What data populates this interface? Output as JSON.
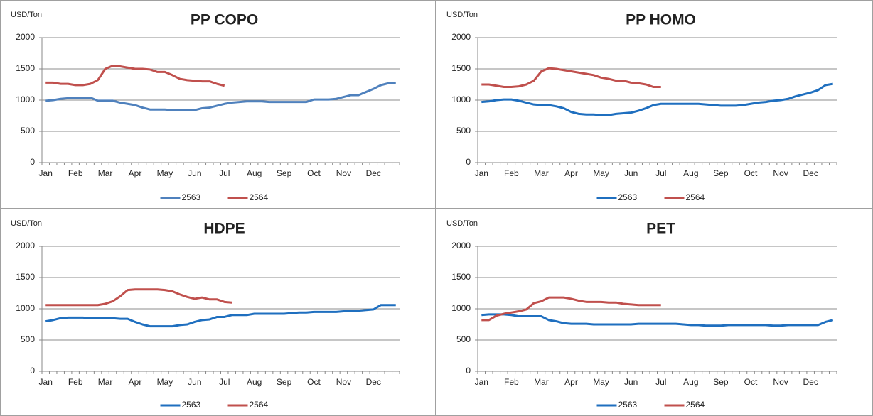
{
  "chart_data": [
    {
      "type": "line",
      "title": "PP COPO",
      "ylabel": "USD/Ton",
      "categories": [
        "Jan",
        null,
        null,
        null,
        "Feb",
        null,
        null,
        null,
        "Mar",
        null,
        null,
        null,
        "Apr",
        null,
        null,
        null,
        "May",
        null,
        null,
        null,
        "Jun",
        null,
        null,
        null,
        "Jul",
        null,
        null,
        null,
        "Aug",
        null,
        null,
        null,
        "Sep",
        null,
        null,
        null,
        "Oct",
        null,
        null,
        null,
        "Nov",
        null,
        null,
        null,
        "Dec",
        null,
        null,
        null
      ],
      "series": [
        {
          "name": "2563",
          "color": "#4f81bd",
          "values": [
            990,
            1000,
            1020,
            1030,
            1040,
            1030,
            1040,
            990,
            990,
            990,
            960,
            940,
            920,
            880,
            850,
            850,
            850,
            840,
            840,
            840,
            840,
            870,
            880,
            910,
            940,
            960,
            970,
            980,
            980,
            980,
            970,
            970,
            970,
            970,
            970,
            970,
            1010,
            1010,
            1010,
            1020,
            1050,
            1080,
            1080,
            1130,
            1180,
            1240,
            1270,
            1270
          ]
        },
        {
          "name": "2564",
          "color": "#c0504d",
          "values": [
            1280,
            1280,
            1260,
            1260,
            1240,
            1240,
            1260,
            1320,
            1500,
            1550,
            1540,
            1520,
            1500,
            1500,
            1490,
            1450,
            1450,
            1400,
            1340,
            1320,
            1310,
            1300,
            1300,
            1260,
            1230,
            null,
            null,
            null,
            null,
            null,
            null,
            null,
            null,
            null,
            null,
            null,
            null,
            null,
            null,
            null,
            null,
            null,
            null,
            null,
            null,
            null,
            null,
            null
          ]
        }
      ],
      "ylim": [
        0,
        2000
      ],
      "yticks": [
        0,
        500,
        1000,
        1500,
        2000
      ],
      "grid": true,
      "legend": "bottom"
    },
    {
      "type": "line",
      "title": "PP HOMO",
      "ylabel": "USD/Ton",
      "categories": [
        "Jan",
        null,
        null,
        null,
        "Feb",
        null,
        null,
        null,
        "Mar",
        null,
        null,
        null,
        "Apr",
        null,
        null,
        null,
        "May",
        null,
        null,
        null,
        "Jun",
        null,
        null,
        null,
        "Jul",
        null,
        null,
        null,
        "Aug",
        null,
        null,
        null,
        "Sep",
        null,
        null,
        null,
        "Oct",
        null,
        null,
        null,
        "Nov",
        null,
        null,
        null,
        "Dec",
        null,
        null,
        null
      ],
      "series": [
        {
          "name": "2563",
          "color": "#1f6fbf",
          "values": [
            970,
            980,
            1000,
            1010,
            1010,
            990,
            960,
            930,
            920,
            920,
            900,
            870,
            810,
            780,
            770,
            770,
            760,
            760,
            780,
            790,
            800,
            830,
            870,
            920,
            940,
            940,
            940,
            940,
            940,
            940,
            930,
            920,
            910,
            910,
            910,
            920,
            940,
            960,
            970,
            990,
            1000,
            1020,
            1060,
            1090,
            1120,
            1160,
            1240,
            1260
          ]
        },
        {
          "name": "2564",
          "color": "#c0504d",
          "values": [
            1250,
            1250,
            1230,
            1210,
            1210,
            1220,
            1250,
            1310,
            1460,
            1510,
            1500,
            1480,
            1460,
            1440,
            1420,
            1400,
            1360,
            1340,
            1310,
            1310,
            1280,
            1270,
            1250,
            1210,
            1210,
            null,
            null,
            null,
            null,
            null,
            null,
            null,
            null,
            null,
            null,
            null,
            null,
            null,
            null,
            null,
            null,
            null,
            null,
            null,
            null,
            null,
            null,
            null
          ]
        }
      ],
      "ylim": [
        0,
        2000
      ],
      "yticks": [
        0,
        500,
        1000,
        1500,
        2000
      ],
      "grid": true,
      "legend": "bottom"
    },
    {
      "type": "line",
      "title": "HDPE",
      "ylabel": "USD/Ton",
      "categories": [
        "Jan",
        null,
        null,
        null,
        "Feb",
        null,
        null,
        null,
        "Mar",
        null,
        null,
        null,
        "Apr",
        null,
        null,
        null,
        "May",
        null,
        null,
        null,
        "Jun",
        null,
        null,
        null,
        "Jul",
        null,
        null,
        null,
        "Aug",
        null,
        null,
        null,
        "Sep",
        null,
        null,
        null,
        "Oct",
        null,
        null,
        null,
        "Nov",
        null,
        null,
        null,
        "Dec",
        null,
        null,
        null
      ],
      "series": [
        {
          "name": "2563",
          "color": "#1f6fbf",
          "values": [
            800,
            820,
            850,
            860,
            860,
            860,
            850,
            850,
            850,
            850,
            840,
            840,
            790,
            750,
            720,
            720,
            720,
            720,
            740,
            750,
            790,
            820,
            830,
            870,
            870,
            900,
            900,
            900,
            920,
            920,
            920,
            920,
            920,
            930,
            940,
            940,
            950,
            950,
            950,
            950,
            960,
            960,
            970,
            980,
            990,
            1060,
            1060,
            1060
          ]
        },
        {
          "name": "2564",
          "color": "#c0504d",
          "values": [
            1060,
            1060,
            1060,
            1060,
            1060,
            1060,
            1060,
            1060,
            1080,
            1120,
            1200,
            1300,
            1310,
            1310,
            1310,
            1310,
            1300,
            1280,
            1230,
            1190,
            1160,
            1180,
            1150,
            1150,
            1110,
            1100,
            null,
            null,
            null,
            null,
            null,
            null,
            null,
            null,
            null,
            null,
            null,
            null,
            null,
            null,
            null,
            null,
            null,
            null,
            null,
            null,
            null,
            null
          ]
        }
      ],
      "ylim": [
        0,
        2000
      ],
      "yticks": [
        0,
        500,
        1000,
        1500,
        2000
      ],
      "grid": true,
      "legend": "bottom"
    },
    {
      "type": "line",
      "title": "PET",
      "ylabel": "USD/Ton",
      "categories": [
        "Jan",
        null,
        null,
        null,
        "Feb",
        null,
        null,
        null,
        "Mar",
        null,
        null,
        null,
        "Apr",
        null,
        null,
        null,
        "May",
        null,
        null,
        null,
        "Jun",
        null,
        null,
        null,
        "Jul",
        null,
        null,
        null,
        "Aug",
        null,
        null,
        null,
        "Sep",
        null,
        null,
        null,
        "Oct",
        null,
        null,
        null,
        "Nov",
        null,
        null,
        null,
        "Dec",
        null,
        null,
        null
      ],
      "series": [
        {
          "name": "2563",
          "color": "#1f6fbf",
          "values": [
            900,
            910,
            910,
            910,
            900,
            880,
            880,
            880,
            880,
            820,
            800,
            770,
            760,
            760,
            760,
            750,
            750,
            750,
            750,
            750,
            750,
            760,
            760,
            760,
            760,
            760,
            760,
            750,
            740,
            740,
            730,
            730,
            730,
            740,
            740,
            740,
            740,
            740,
            740,
            730,
            730,
            740,
            740,
            740,
            740,
            740,
            790,
            820
          ]
        },
        {
          "name": "2564",
          "color": "#c0504d",
          "values": [
            820,
            820,
            890,
            920,
            940,
            960,
            990,
            1090,
            1120,
            1180,
            1180,
            1180,
            1160,
            1130,
            1110,
            1110,
            1110,
            1100,
            1100,
            1080,
            1070,
            1060,
            1060,
            1060,
            1060,
            null,
            null,
            null,
            null,
            null,
            null,
            null,
            null,
            null,
            null,
            null,
            null,
            null,
            null,
            null,
            null,
            null,
            null,
            null,
            null,
            null,
            null,
            null
          ]
        }
      ],
      "ylim": [
        0,
        2000
      ],
      "yticks": [
        0,
        500,
        1000,
        1500,
        2000
      ],
      "grid": true,
      "legend": "bottom"
    }
  ]
}
